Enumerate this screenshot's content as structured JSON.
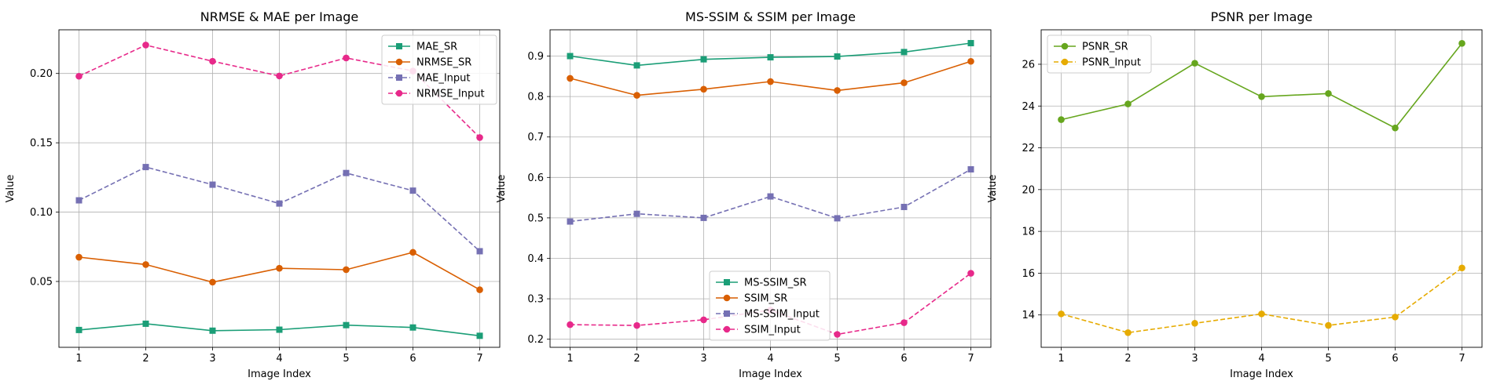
{
  "chart_data": [
    {
      "type": "line",
      "title": "NRMSE & MAE per Image",
      "xlabel": "Image Index",
      "ylabel": "Value",
      "x": [
        1,
        2,
        3,
        4,
        5,
        6,
        7
      ],
      "xlim": [
        0.7,
        7.3
      ],
      "ylim": [
        0.0025,
        0.2315
      ],
      "yticks": [
        0.05,
        0.1,
        0.15,
        0.2
      ],
      "ytick_labels": [
        "0.05",
        "0.10",
        "0.15",
        "0.20"
      ],
      "grid": true,
      "legend_position": "top-right",
      "series": [
        {
          "name": "MAE_SR",
          "color": "#1b9e77",
          "marker": "square",
          "dashed": false,
          "values": [
            0.015,
            0.0195,
            0.0145,
            0.0152,
            0.0185,
            0.0168,
            0.0108
          ]
        },
        {
          "name": "NRMSE_SR",
          "color": "#d95f02",
          "marker": "circle",
          "dashed": false,
          "values": [
            0.0675,
            0.0622,
            0.0495,
            0.0595,
            0.0585,
            0.071,
            0.044
          ]
        },
        {
          "name": "MAE_Input",
          "color": "#7570b3",
          "marker": "square",
          "dashed": true,
          "values": [
            0.1085,
            0.1325,
            0.1198,
            0.1062,
            0.1282,
            0.1155,
            0.0718
          ]
        },
        {
          "name": "NRMSE_Input",
          "color": "#e7298a",
          "marker": "circle",
          "dashed": true,
          "values": [
            0.198,
            0.2205,
            0.2088,
            0.1982,
            0.2112,
            0.2018,
            0.1538
          ]
        }
      ]
    },
    {
      "type": "line",
      "title": "MS-SSIM & SSIM per Image",
      "xlabel": "Image Index",
      "ylabel": "Value",
      "x": [
        1,
        2,
        3,
        4,
        5,
        6,
        7
      ],
      "xlim": [
        0.7,
        7.3
      ],
      "ylim": [
        0.18,
        0.965
      ],
      "yticks": [
        0.2,
        0.3,
        0.4,
        0.5,
        0.6,
        0.7,
        0.8,
        0.9
      ],
      "ytick_labels": [
        "0.2",
        "0.3",
        "0.4",
        "0.5",
        "0.6",
        "0.7",
        "0.8",
        "0.9"
      ],
      "grid": true,
      "legend_position": "bottom-center",
      "series": [
        {
          "name": "MS-SSIM_SR",
          "color": "#1b9e77",
          "marker": "square",
          "dashed": false,
          "values": [
            0.9,
            0.877,
            0.892,
            0.897,
            0.899,
            0.91,
            0.932
          ]
        },
        {
          "name": "SSIM_SR",
          "color": "#d95f02",
          "marker": "circle",
          "dashed": false,
          "values": [
            0.845,
            0.803,
            0.818,
            0.837,
            0.815,
            0.834,
            0.887
          ]
        },
        {
          "name": "MS-SSIM_Input",
          "color": "#7570b3",
          "marker": "square",
          "dashed": true,
          "values": [
            0.491,
            0.51,
            0.5,
            0.553,
            0.499,
            0.527,
            0.62
          ]
        },
        {
          "name": "SSIM_Input",
          "color": "#e7298a",
          "marker": "circle",
          "dashed": true,
          "values": [
            0.236,
            0.234,
            0.248,
            0.272,
            0.212,
            0.241,
            0.363
          ]
        }
      ]
    },
    {
      "type": "line",
      "title": "PSNR per Image",
      "xlabel": "Image Index",
      "ylabel": "Value",
      "x": [
        1,
        2,
        3,
        4,
        5,
        6,
        7
      ],
      "xlim": [
        0.7,
        7.3
      ],
      "ylim": [
        12.45,
        27.65
      ],
      "yticks": [
        14,
        16,
        18,
        20,
        22,
        24,
        26
      ],
      "ytick_labels": [
        "14",
        "16",
        "18",
        "20",
        "22",
        "24",
        "26"
      ],
      "grid": true,
      "legend_position": "top-left",
      "series": [
        {
          "name": "PSNR_SR",
          "color": "#66a61e",
          "marker": "circle",
          "dashed": false,
          "values": [
            23.35,
            24.1,
            26.05,
            24.45,
            24.6,
            22.95,
            27.0
          ]
        },
        {
          "name": "PSNR_Input",
          "color": "#e6ab02",
          "marker": "circle",
          "dashed": true,
          "values": [
            14.05,
            13.15,
            13.6,
            14.05,
            13.5,
            13.9,
            16.25
          ]
        }
      ]
    }
  ]
}
